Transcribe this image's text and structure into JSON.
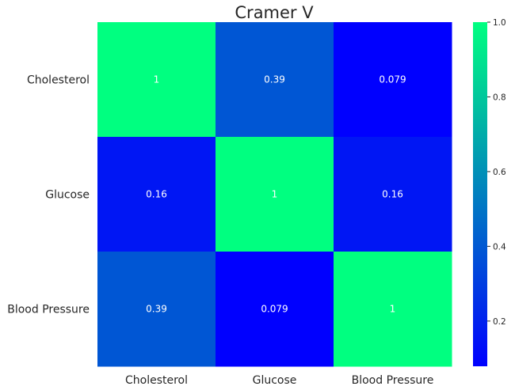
{
  "chart_data": {
    "type": "heatmap",
    "title": "Cramer V",
    "rows": [
      "Cholesterol",
      "Glucose",
      "Blood Pressure"
    ],
    "columns": [
      "Cholesterol",
      "Glucose",
      "Blood Pressure"
    ],
    "values": [
      [
        1,
        0.39,
        0.079
      ],
      [
        0.16,
        1,
        0.16
      ],
      [
        0.39,
        0.079,
        1
      ]
    ],
    "annotations": [
      [
        "1",
        "0.39",
        "0.079"
      ],
      [
        "0.16",
        "1",
        "0.16"
      ],
      [
        "0.39",
        "0.079",
        "1"
      ]
    ],
    "colormap": "winter",
    "color_low": "#0000ff",
    "color_high": "#00ff80",
    "vmin": 0.079,
    "vmax": 1.0,
    "colorbar_ticks": [
      {
        "value": 0.2,
        "label": "0.2"
      },
      {
        "value": 0.4,
        "label": "0.4"
      },
      {
        "value": 0.6,
        "label": "0.6"
      },
      {
        "value": 0.8,
        "label": "0.8"
      },
      {
        "value": 1.0,
        "label": "1.0"
      }
    ],
    "annotation_color": "#ffffff"
  }
}
